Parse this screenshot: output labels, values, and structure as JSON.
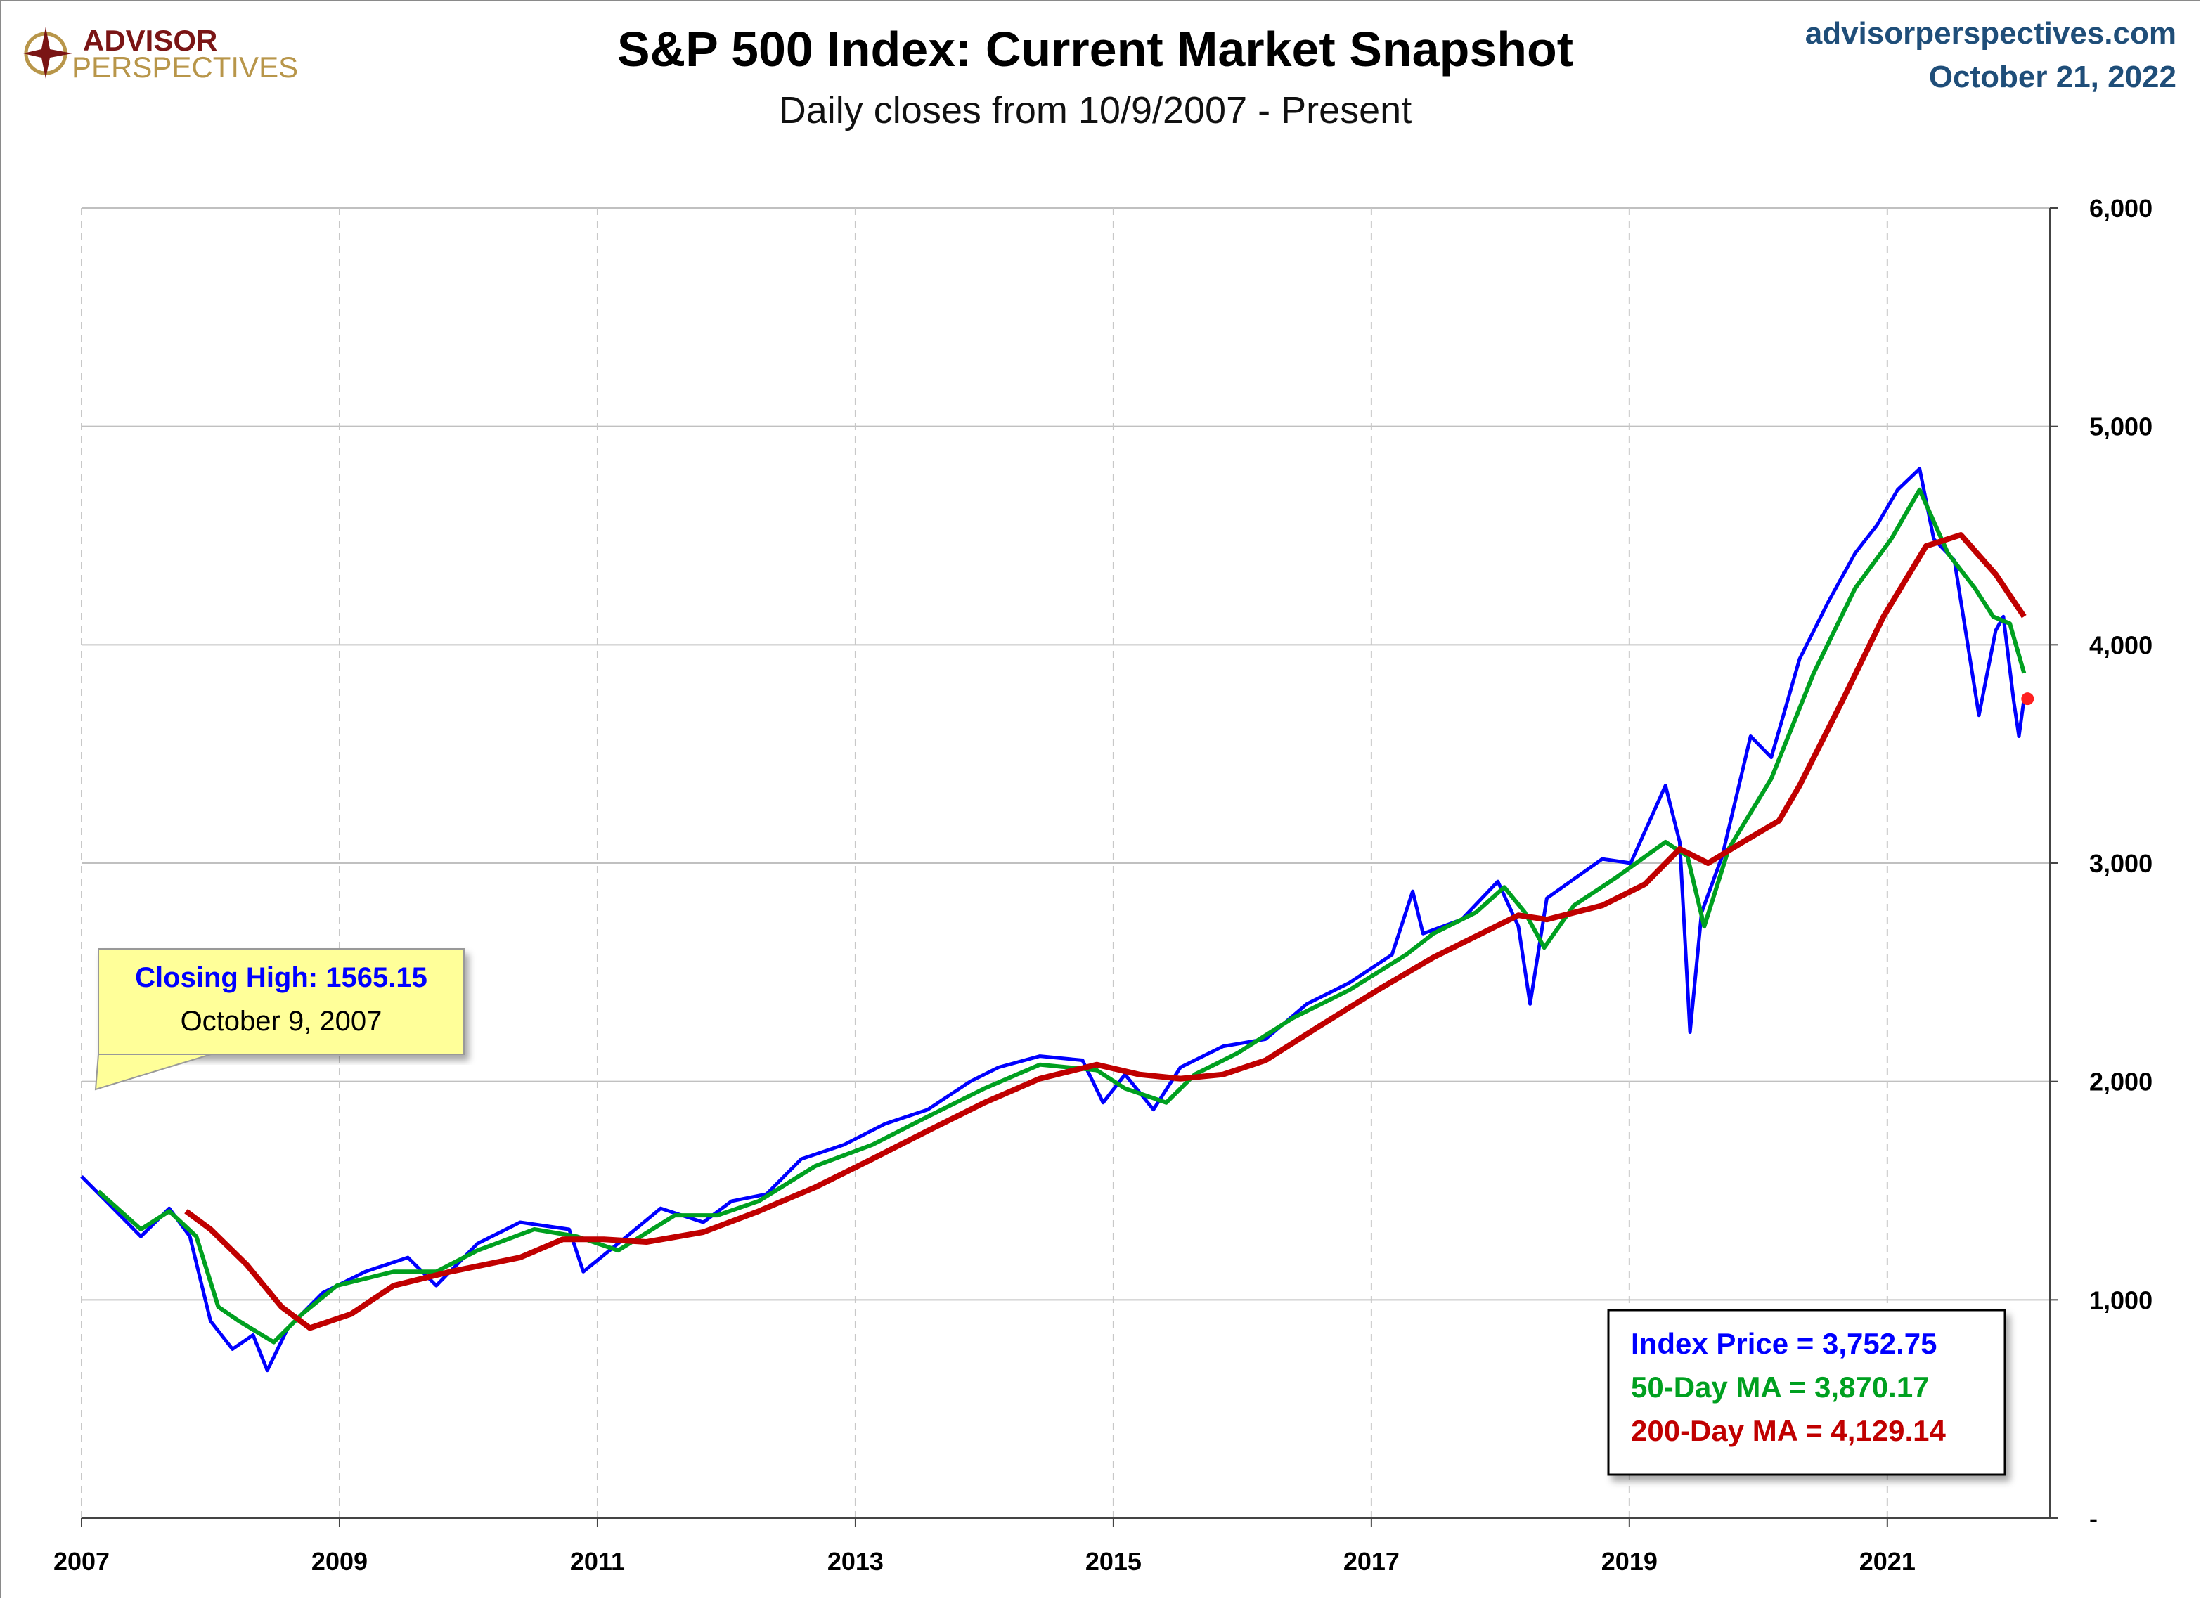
{
  "header": {
    "logo_line1": "ADVISOR",
    "logo_line2": "PERSPECTIVES",
    "site": "advisorperspectives.com",
    "date": "October 21, 2022"
  },
  "callout": {
    "title": "Closing High: 1565.15",
    "date": "October 9, 2007"
  },
  "legend": {
    "index_label": "Index Price =  3,752.75",
    "ma50_label": "50-Day MA = 3,870.17",
    "ma200_label": "200-Day MA = 4,129.14"
  },
  "colors": {
    "index": "#0000ff",
    "ma50": "#00a020",
    "ma200": "#c00000",
    "site": "#1f4e79"
  },
  "chart_data": {
    "type": "line",
    "title": "S&P 500 Index: Current Market Snapshot",
    "subtitle": "Daily closes from 10/9/2007 - Present",
    "xlabel": "",
    "ylabel": "",
    "xlim": [
      2007,
      2022.26
    ],
    "ylim": [
      0,
      6000
    ],
    "grid": true,
    "x_ticks": [
      2007,
      2009,
      2011,
      2013,
      2015,
      2017,
      2019,
      2021
    ],
    "x_tick_labels": [
      "2007",
      "2009",
      "2011",
      "2013",
      "2015",
      "2017",
      "2019",
      "2021"
    ],
    "y_ticks": [
      0,
      1000,
      2000,
      3000,
      4000,
      5000,
      6000
    ],
    "y_tick_labels": [
      "-",
      "1,000",
      "2,000",
      "3,000",
      "4,000",
      "5,000",
      "6,000"
    ],
    "series": [
      {
        "name": "Index Price",
        "color": "#0000ff",
        "x": [
          2007.0,
          2007.19,
          2007.46,
          2007.68,
          2007.84,
          2008.0,
          2008.17,
          2008.33,
          2008.44,
          2008.6,
          2008.87,
          2009.2,
          2009.53,
          2009.75,
          2010.07,
          2010.4,
          2010.78,
          2010.89,
          2011.16,
          2011.49,
          2011.82,
          2012.04,
          2012.31,
          2012.58,
          2012.91,
          2013.23,
          2013.56,
          2013.89,
          2014.11,
          2014.43,
          2014.76,
          2014.92,
          2015.09,
          2015.31,
          2015.52,
          2015.85,
          2016.18,
          2016.5,
          2016.83,
          2017.16,
          2017.32,
          2017.4,
          2017.7,
          2017.98,
          2018.14,
          2018.23,
          2018.36,
          2018.79,
          2019.01,
          2019.28,
          2019.39,
          2019.47,
          2019.56,
          2019.72,
          2019.94,
          2020.1,
          2020.32,
          2020.54,
          2020.75,
          2020.92,
          2021.08,
          2021.25,
          2021.36,
          2021.52,
          2021.71,
          2021.84,
          2021.9,
          2021.98,
          2022.02,
          2022.06
        ],
        "values": [
          1565,
          1452,
          1290,
          1419,
          1290,
          903,
          774,
          839,
          677,
          871,
          1032,
          1129,
          1194,
          1065,
          1258,
          1355,
          1323,
          1129,
          1258,
          1419,
          1355,
          1452,
          1484,
          1645,
          1710,
          1806,
          1871,
          2000,
          2065,
          2116,
          2097,
          1903,
          2032,
          1871,
          2065,
          2161,
          2194,
          2355,
          2452,
          2581,
          2871,
          2677,
          2742,
          2916,
          2710,
          2355,
          2839,
          3019,
          3000,
          3355,
          3097,
          2226,
          2774,
          3032,
          3581,
          3484,
          3935,
          4194,
          4419,
          4548,
          4710,
          4806,
          4484,
          4387,
          3677,
          4065,
          4129,
          3742,
          3581,
          3752.75
        ]
      },
      {
        "name": "50-Day MA",
        "color": "#00a020",
        "x": [
          2007.13,
          2007.46,
          2007.68,
          2007.89,
          2008.06,
          2008.22,
          2008.49,
          2008.71,
          2008.98,
          2009.42,
          2009.75,
          2010.07,
          2010.51,
          2010.84,
          2011.16,
          2011.6,
          2011.93,
          2012.25,
          2012.69,
          2013.13,
          2013.56,
          2014.0,
          2014.43,
          2014.87,
          2015.09,
          2015.41,
          2015.63,
          2015.96,
          2016.39,
          2016.83,
          2017.27,
          2017.48,
          2017.81,
          2018.03,
          2018.19,
          2018.34,
          2018.57,
          2018.9,
          2019.28,
          2019.45,
          2019.58,
          2019.77,
          2020.1,
          2020.43,
          2020.75,
          2021.03,
          2021.25,
          2021.47,
          2021.68,
          2021.82,
          2021.95,
          2022.06
        ],
        "values": [
          1497,
          1323,
          1406,
          1290,
          968,
          903,
          806,
          935,
          1065,
          1129,
          1129,
          1226,
          1323,
          1290,
          1226,
          1387,
          1387,
          1452,
          1613,
          1710,
          1839,
          1968,
          2077,
          2052,
          1968,
          1903,
          2032,
          2129,
          2290,
          2419,
          2581,
          2677,
          2774,
          2890,
          2774,
          2613,
          2806,
          2935,
          3097,
          3032,
          2710,
          3065,
          3387,
          3871,
          4258,
          4484,
          4710,
          4419,
          4258,
          4129,
          4097,
          3870.17
        ]
      },
      {
        "name": "200-Day MA",
        "color": "#c00000",
        "x": [
          2007.81,
          2008.0,
          2008.28,
          2008.55,
          2008.77,
          2009.09,
          2009.42,
          2009.86,
          2010.4,
          2010.73,
          2011.05,
          2011.38,
          2011.82,
          2012.25,
          2012.69,
          2013.13,
          2013.56,
          2014.0,
          2014.43,
          2014.87,
          2015.2,
          2015.52,
          2015.85,
          2016.18,
          2016.61,
          2017.05,
          2017.48,
          2017.92,
          2018.14,
          2018.36,
          2018.79,
          2019.12,
          2019.39,
          2019.61,
          2019.88,
          2020.16,
          2020.32,
          2020.65,
          2020.97,
          2021.3,
          2021.57,
          2021.84,
          2022.06
        ],
        "values": [
          1406,
          1323,
          1161,
          968,
          871,
          935,
          1065,
          1129,
          1194,
          1277,
          1277,
          1265,
          1310,
          1406,
          1516,
          1645,
          1774,
          1903,
          2013,
          2077,
          2032,
          2013,
          2032,
          2097,
          2258,
          2419,
          2568,
          2697,
          2761,
          2742,
          2806,
          2903,
          3065,
          3000,
          3097,
          3194,
          3355,
          3742,
          4129,
          4452,
          4503,
          4323,
          4129.14
        ]
      }
    ]
  }
}
